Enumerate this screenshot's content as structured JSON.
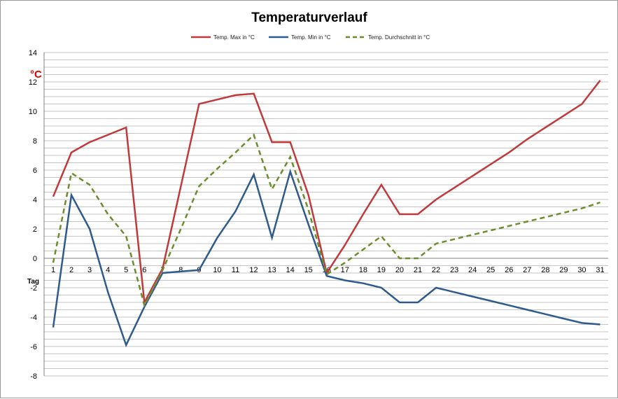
{
  "chart_data": {
    "type": "line",
    "title": "Temperaturverlauf",
    "ylabel": "°C",
    "xlabel": "Tag",
    "ylim": [
      -8,
      14
    ],
    "y_ticks": [
      -8,
      -6,
      -4,
      -2,
      0,
      2,
      4,
      6,
      8,
      10,
      12,
      14
    ],
    "grid": "horizontal minor every 0.5",
    "legend_position": "top",
    "x": [
      1,
      2,
      3,
      4,
      5,
      6,
      7,
      8,
      9,
      10,
      11,
      12,
      13,
      14,
      15,
      16,
      17,
      18,
      19,
      20,
      21,
      22,
      23,
      24,
      25,
      26,
      27,
      28,
      29,
      30,
      31
    ],
    "series": [
      {
        "name": "Temp. Max in °C",
        "color": "#c0393b",
        "style": "solid",
        "values": [
          4.2,
          7.2,
          7.9,
          8.4,
          8.9,
          -3.0,
          -0.7,
          4.9,
          10.5,
          10.8,
          11.1,
          11.2,
          7.9,
          7.9,
          4.3,
          -1.0,
          0.9,
          3.0,
          5.0,
          3.0,
          3.0,
          4.0,
          4.8,
          5.6,
          6.4,
          7.2,
          8.1,
          8.9,
          9.7,
          10.5,
          12.1
        ]
      },
      {
        "name": "Temp. Min in °C",
        "color": "#2e5b8c",
        "style": "solid",
        "values": [
          -4.7,
          4.3,
          2.0,
          -2.3,
          -5.9,
          -3.3,
          -1.0,
          -0.9,
          -0.8,
          1.4,
          3.2,
          5.7,
          1.4,
          5.9,
          2.3,
          -1.2,
          -1.5,
          -1.7,
          -2.0,
          -3.0,
          -3.0,
          -2.0,
          -2.3,
          -2.6,
          -2.9,
          -3.2,
          -3.5,
          -3.8,
          -4.1,
          -4.4,
          -4.5
        ]
      },
      {
        "name": "Temp. Durchschnitt in °C",
        "color": "#6c8d2c",
        "style": "dashed",
        "values": [
          -0.3,
          5.8,
          5.0,
          3.0,
          1.5,
          -3.2,
          -0.8,
          2.0,
          4.9,
          6.1,
          7.2,
          8.4,
          4.7,
          6.9,
          3.3,
          -1.1,
          -0.3,
          0.6,
          1.5,
          0.0,
          0.0,
          1.0,
          1.3,
          1.6,
          1.9,
          2.2,
          2.5,
          2.8,
          3.1,
          3.4,
          3.8
        ]
      }
    ]
  }
}
